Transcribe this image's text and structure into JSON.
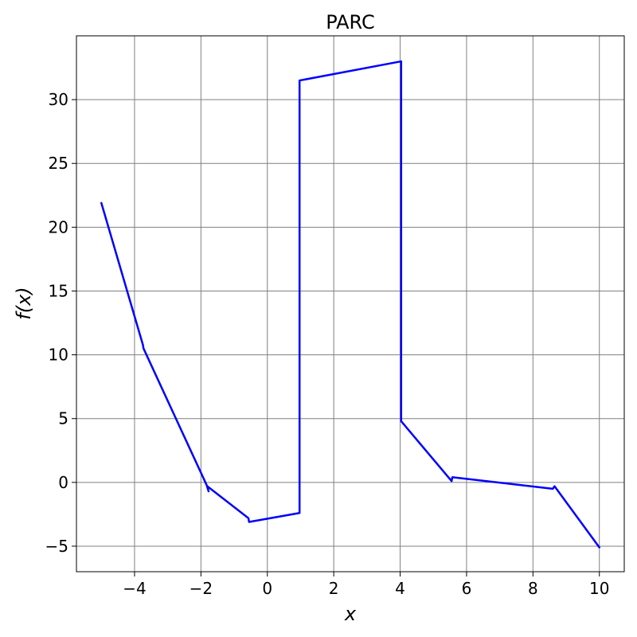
{
  "chart_data": {
    "type": "line",
    "title": "PARC",
    "xlabel": "x",
    "ylabel": "f(x)",
    "xlim": [
      -5.75,
      10.75
    ],
    "ylim": [
      -7.0,
      35.0
    ],
    "xticks": [
      -4,
      -2,
      0,
      2,
      4,
      6,
      8,
      10
    ],
    "xtick_labels": [
      "−4",
      "−2",
      "0",
      "2",
      "4",
      "6",
      "8",
      "10"
    ],
    "yticks": [
      -5,
      0,
      5,
      10,
      15,
      20,
      25,
      30
    ],
    "ytick_labels": [
      "−5",
      "0",
      "5",
      "10",
      "15",
      "20",
      "25",
      "30"
    ],
    "grid": true,
    "series": [
      {
        "color": "#0000ff",
        "x": [
          -5.0,
          -3.75,
          -3.73,
          -1.83,
          -1.77,
          -1.81,
          -0.57,
          -0.55,
          0.97,
          0.97,
          4.03,
          4.03,
          5.55,
          5.57,
          5.58,
          8.6,
          8.65,
          10.0
        ],
        "y": [
          21.9,
          10.8,
          10.5,
          -0.2,
          -0.7,
          -0.3,
          -2.8,
          -3.1,
          -2.4,
          31.5,
          33.0,
          4.8,
          0.1,
          0.4,
          0.4,
          -0.5,
          -0.3,
          -5.1
        ]
      }
    ]
  }
}
